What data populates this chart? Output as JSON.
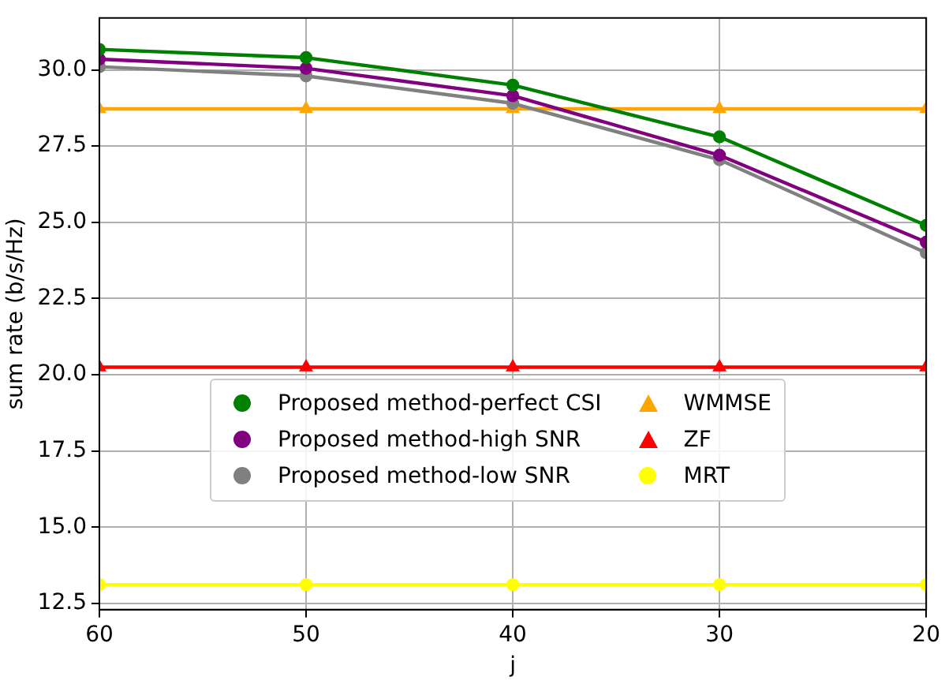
{
  "chart_data": {
    "type": "line",
    "xlabel": "j",
    "ylabel": "sum rate (b/s/Hz)",
    "x": [
      60,
      50,
      40,
      30,
      20
    ],
    "xlim": [
      60,
      20
    ],
    "xticks": [
      60,
      50,
      40,
      30,
      20
    ],
    "ylim": [
      12.3,
      31.7
    ],
    "yticks": [
      {
        "value": 12.5,
        "label": "12.5"
      },
      {
        "value": 15,
        "label": "15.0"
      },
      {
        "value": 17.5,
        "label": "17.5"
      },
      {
        "value": 20,
        "label": "20.0"
      },
      {
        "value": 22.5,
        "label": "22.5"
      },
      {
        "value": 25,
        "label": "25.0"
      },
      {
        "value": 27.5,
        "label": "27.5"
      },
      {
        "value": 30,
        "label": "30.0"
      }
    ],
    "grid": true,
    "legend": "bottom",
    "line_style": "solid",
    "series": [
      {
        "name": "Proposed method-perfect CSI",
        "color": "#008000",
        "marker": "circle",
        "values": [
          30.67,
          30.4,
          29.5,
          27.8,
          24.9
        ]
      },
      {
        "name": "Proposed method-high SNR",
        "color": "#800080",
        "marker": "circle",
        "values": [
          30.35,
          30.05,
          29.15,
          27.2,
          24.35
        ]
      },
      {
        "name": "Proposed method-low SNR",
        "color": "#808080",
        "marker": "circle",
        "values": [
          30.1,
          29.8,
          28.9,
          27.05,
          24.0
        ]
      },
      {
        "name": "WMMSE",
        "color": "#ffa500",
        "marker": "triangle",
        "values": [
          28.72,
          28.72,
          28.72,
          28.72,
          28.72
        ]
      },
      {
        "name": "ZF",
        "color": "#ff0000",
        "marker": "triangle",
        "values": [
          20.25,
          20.25,
          20.25,
          20.25,
          20.25
        ]
      },
      {
        "name": "MRT",
        "color": "#ffff00",
        "marker": "circle",
        "values": [
          13.12,
          13.12,
          13.12,
          13.12,
          13.12
        ]
      }
    ]
  }
}
